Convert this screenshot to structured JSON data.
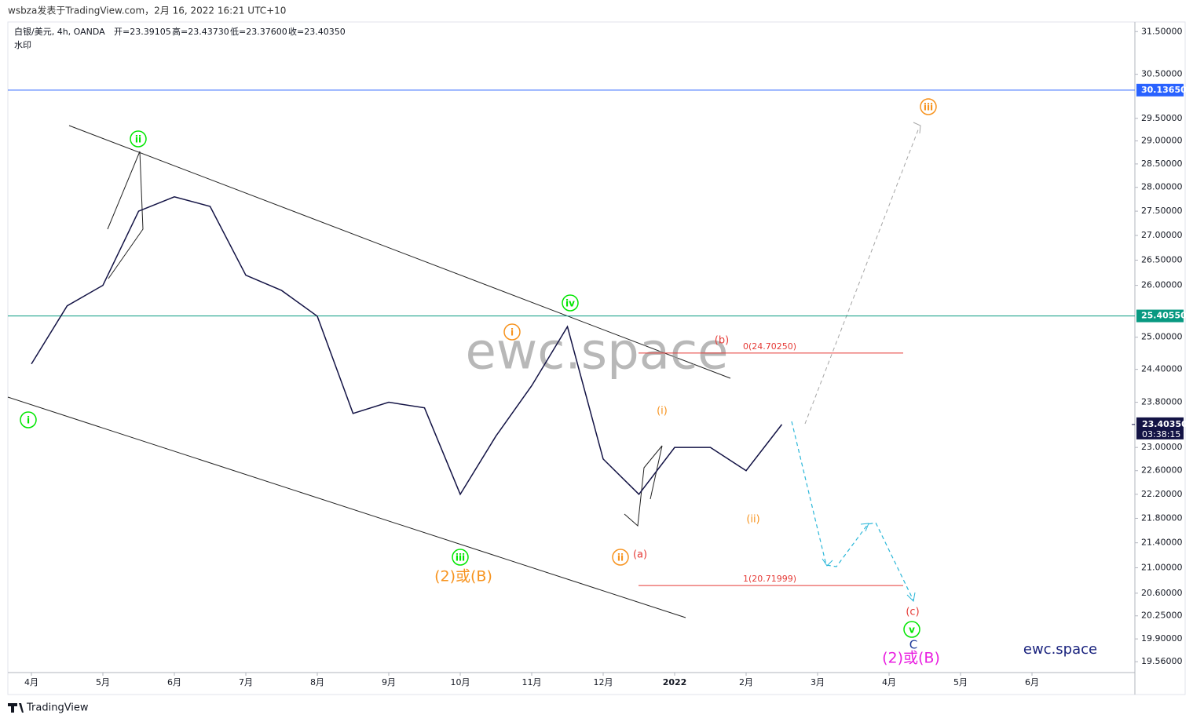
{
  "chart_data": {
    "type": "line",
    "source_line": "wsbza发表于TradingView.com，2月 16, 2022 16:21 UTC+10",
    "title": "白银/美元, 4h, OANDA",
    "ohlc": [
      "开=23.39105",
      "高=23.43730",
      "低=23.37600",
      "收=23.40350"
    ],
    "subtitle": "水印",
    "watermark": "ewc.space",
    "brand": "ewc.space",
    "footer": "TradingView",
    "log_scale": true,
    "categories": [
      "4月",
      null,
      "5月",
      null,
      "6月",
      null,
      "7月",
      null,
      "8月",
      null,
      "9月",
      null,
      "10月",
      null,
      "11月",
      null,
      "12月",
      null,
      "2022",
      null,
      "2月",
      null,
      "3月",
      null,
      "4月",
      null,
      "5月",
      null,
      "6月"
    ],
    "series": [
      {
        "color": "#131345",
        "values": [
          24.5,
          25.6,
          26.0,
          27.5,
          27.8,
          27.6,
          26.2,
          25.9,
          25.4,
          23.6,
          23.8,
          23.7,
          22.2,
          23.2,
          24.1,
          25.2,
          22.8,
          22.2,
          23.0,
          23.0,
          22.6,
          23.4035,
          null,
          null,
          null,
          null,
          null,
          null,
          null
        ]
      }
    ],
    "ylim": [
      19.4,
      31.73
    ],
    "yticks": [
      {
        "value": 31.5,
        "label": "31.50000"
      },
      {
        "value": 30.5,
        "label": "30.50000"
      },
      {
        "value": 29.5,
        "label": "29.50000"
      },
      {
        "value": 29,
        "label": "29.00000"
      },
      {
        "value": 28.5,
        "label": "28.50000"
      },
      {
        "value": 28,
        "label": "28.00000"
      },
      {
        "value": 27.5,
        "label": "27.50000"
      },
      {
        "value": 27,
        "label": "27.00000"
      },
      {
        "value": 26.5,
        "label": "26.50000"
      },
      {
        "value": 26,
        "label": "26.00000"
      },
      {
        "value": 25,
        "label": "25.00000"
      },
      {
        "value": 24.4,
        "label": "24.40000"
      },
      {
        "value": 23.8,
        "label": "23.80000"
      },
      {
        "value": 23,
        "label": "23.00000"
      },
      {
        "value": 22.6,
        "label": "22.60000"
      },
      {
        "value": 22.2,
        "label": "22.20000"
      },
      {
        "value": 21.8,
        "label": "21.80000"
      },
      {
        "value": 21.4,
        "label": "21.40000"
      },
      {
        "value": 21,
        "label": "21.00000"
      },
      {
        "value": 20.6,
        "label": "20.60000"
      },
      {
        "value": 20.25,
        "label": "20.25000"
      },
      {
        "value": 19.9,
        "label": "19.90000"
      },
      {
        "value": 19.56,
        "label": "19.56000"
      }
    ],
    "levels": [
      {
        "value": 30.1365,
        "label": "30.13650",
        "color": "#2962ff"
      },
      {
        "value": 25.4055,
        "label": "25.40550",
        "color": "#089981"
      }
    ],
    "fib_levels": [
      {
        "value": 24.7025,
        "label": "0(24.70250)",
        "color": "#e53935"
      },
      {
        "value": 20.71999,
        "label": "1(20.71999)",
        "color": "#e53935"
      }
    ],
    "last_price": {
      "value": 23.4035,
      "label": "23.40350"
    },
    "countdown": "03:38:15",
    "annotations": [
      {
        "text": "ii",
        "color": "#00e600",
        "circled": true
      },
      {
        "text": "i",
        "color": "#00e600",
        "circled": true
      },
      {
        "text": "iii",
        "color": "#00e600",
        "circled": true
      },
      {
        "text": "iv",
        "color": "#00e600",
        "circled": true
      },
      {
        "text": "v",
        "color": "#00e600",
        "circled": true
      },
      {
        "text": "(2)或(B)",
        "color": "#f7931e",
        "circled": false
      },
      {
        "text": "i",
        "color": "#f7931e",
        "circled": true
      },
      {
        "text": "ii",
        "color": "#f7931e",
        "circled": true
      },
      {
        "text": "(a)",
        "color": "#e53935",
        "circled": false
      },
      {
        "text": "(i)",
        "color": "#f7931e",
        "circled": false
      },
      {
        "text": "(b)",
        "color": "#e53935",
        "circled": false
      },
      {
        "text": "(ii)",
        "color": "#f7931e",
        "circled": false
      },
      {
        "text": "iii",
        "color": "#f7931e",
        "circled": true
      },
      {
        "text": "(c)",
        "color": "#e53935",
        "circled": false
      },
      {
        "text": "C",
        "color": "#1e3a9a",
        "circled": false
      },
      {
        "text": "(2)或(B)",
        "color": "#e91ee0",
        "circled": false
      }
    ]
  }
}
